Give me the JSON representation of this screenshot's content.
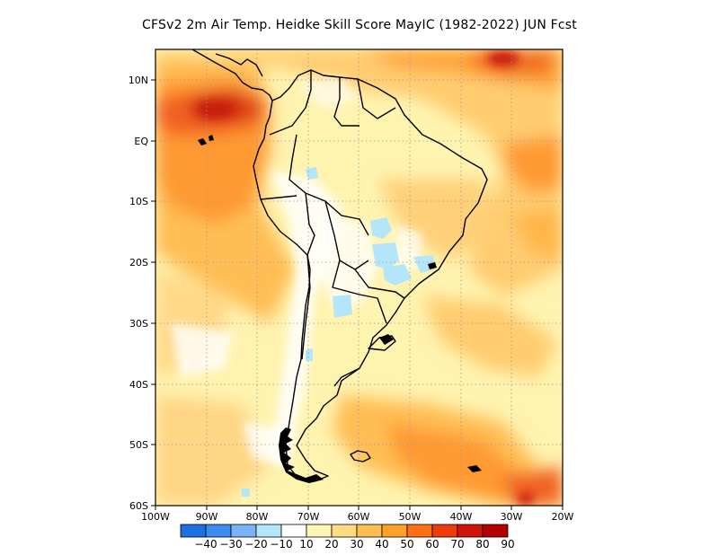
{
  "title": "CFSv2  2m Air Temp. Heidke Skill Score MayIC (1982-2022) JUN Fcst",
  "map": {
    "lat_labels": [
      "10N",
      "EQ",
      "10S",
      "20S",
      "30S",
      "40S",
      "50S",
      "60S"
    ],
    "lon_labels": [
      "100W",
      "90W",
      "80W",
      "70W",
      "60W",
      "50W",
      "40W",
      "30W",
      "20W"
    ],
    "lat_range": [
      -60,
      15
    ],
    "lon_range": [
      -100,
      -20
    ]
  },
  "colorbar": {
    "labels": [
      "-40",
      "-30",
      "-20",
      "-10",
      "10",
      "20",
      "30",
      "40",
      "50",
      "60",
      "70",
      "80",
      "90"
    ],
    "colors": [
      "#1e6fe0",
      "#3c8cf0",
      "#78b4f5",
      "#b4e6fa",
      "#ffffff",
      "#fff5b4",
      "#ffdc82",
      "#ffbe50",
      "#ffa028",
      "#ff6e14",
      "#f03c0a",
      "#d2140a",
      "#b40000"
    ]
  }
}
